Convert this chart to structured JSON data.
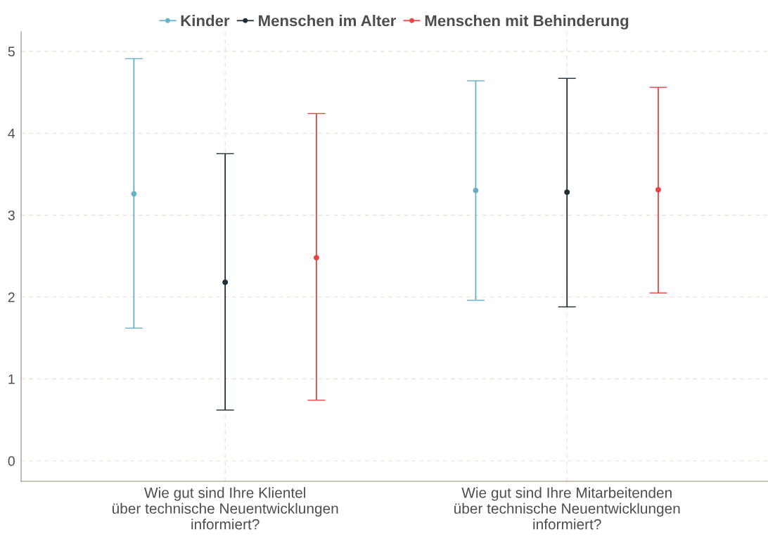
{
  "chart_data": {
    "type": "scatter",
    "categories": [
      "Wie gut sind Ihre Klientel\nüber technische Neuentwicklungen\ninformiert?",
      "Wie gut sind Ihre Mitarbeitenden\nüber technische Neuentwicklungen\ninformiert?"
    ],
    "series": [
      {
        "name": "Kinder",
        "color": "#67b0c8",
        "values": [
          3.26,
          3.3
        ],
        "errors": [
          [
            1.62,
            4.91
          ],
          [
            1.96,
            4.64
          ]
        ]
      },
      {
        "name": "Menschen im Alter",
        "color": "#1e2f3a",
        "values": [
          2.18,
          3.28
        ],
        "errors": [
          [
            0.62,
            3.75
          ],
          [
            1.88,
            4.67
          ]
        ]
      },
      {
        "name": "Menschen mit Behinderung",
        "color": "#e84545",
        "values": [
          2.48,
          3.31
        ],
        "errors": [
          [
            0.74,
            4.24
          ],
          [
            2.05,
            4.56
          ]
        ]
      }
    ],
    "ylim": [
      -0.25,
      5.24
    ],
    "yticks": [
      0,
      1,
      2,
      3,
      4,
      5
    ],
    "grid": true,
    "legend": "top",
    "marker": "circle"
  }
}
